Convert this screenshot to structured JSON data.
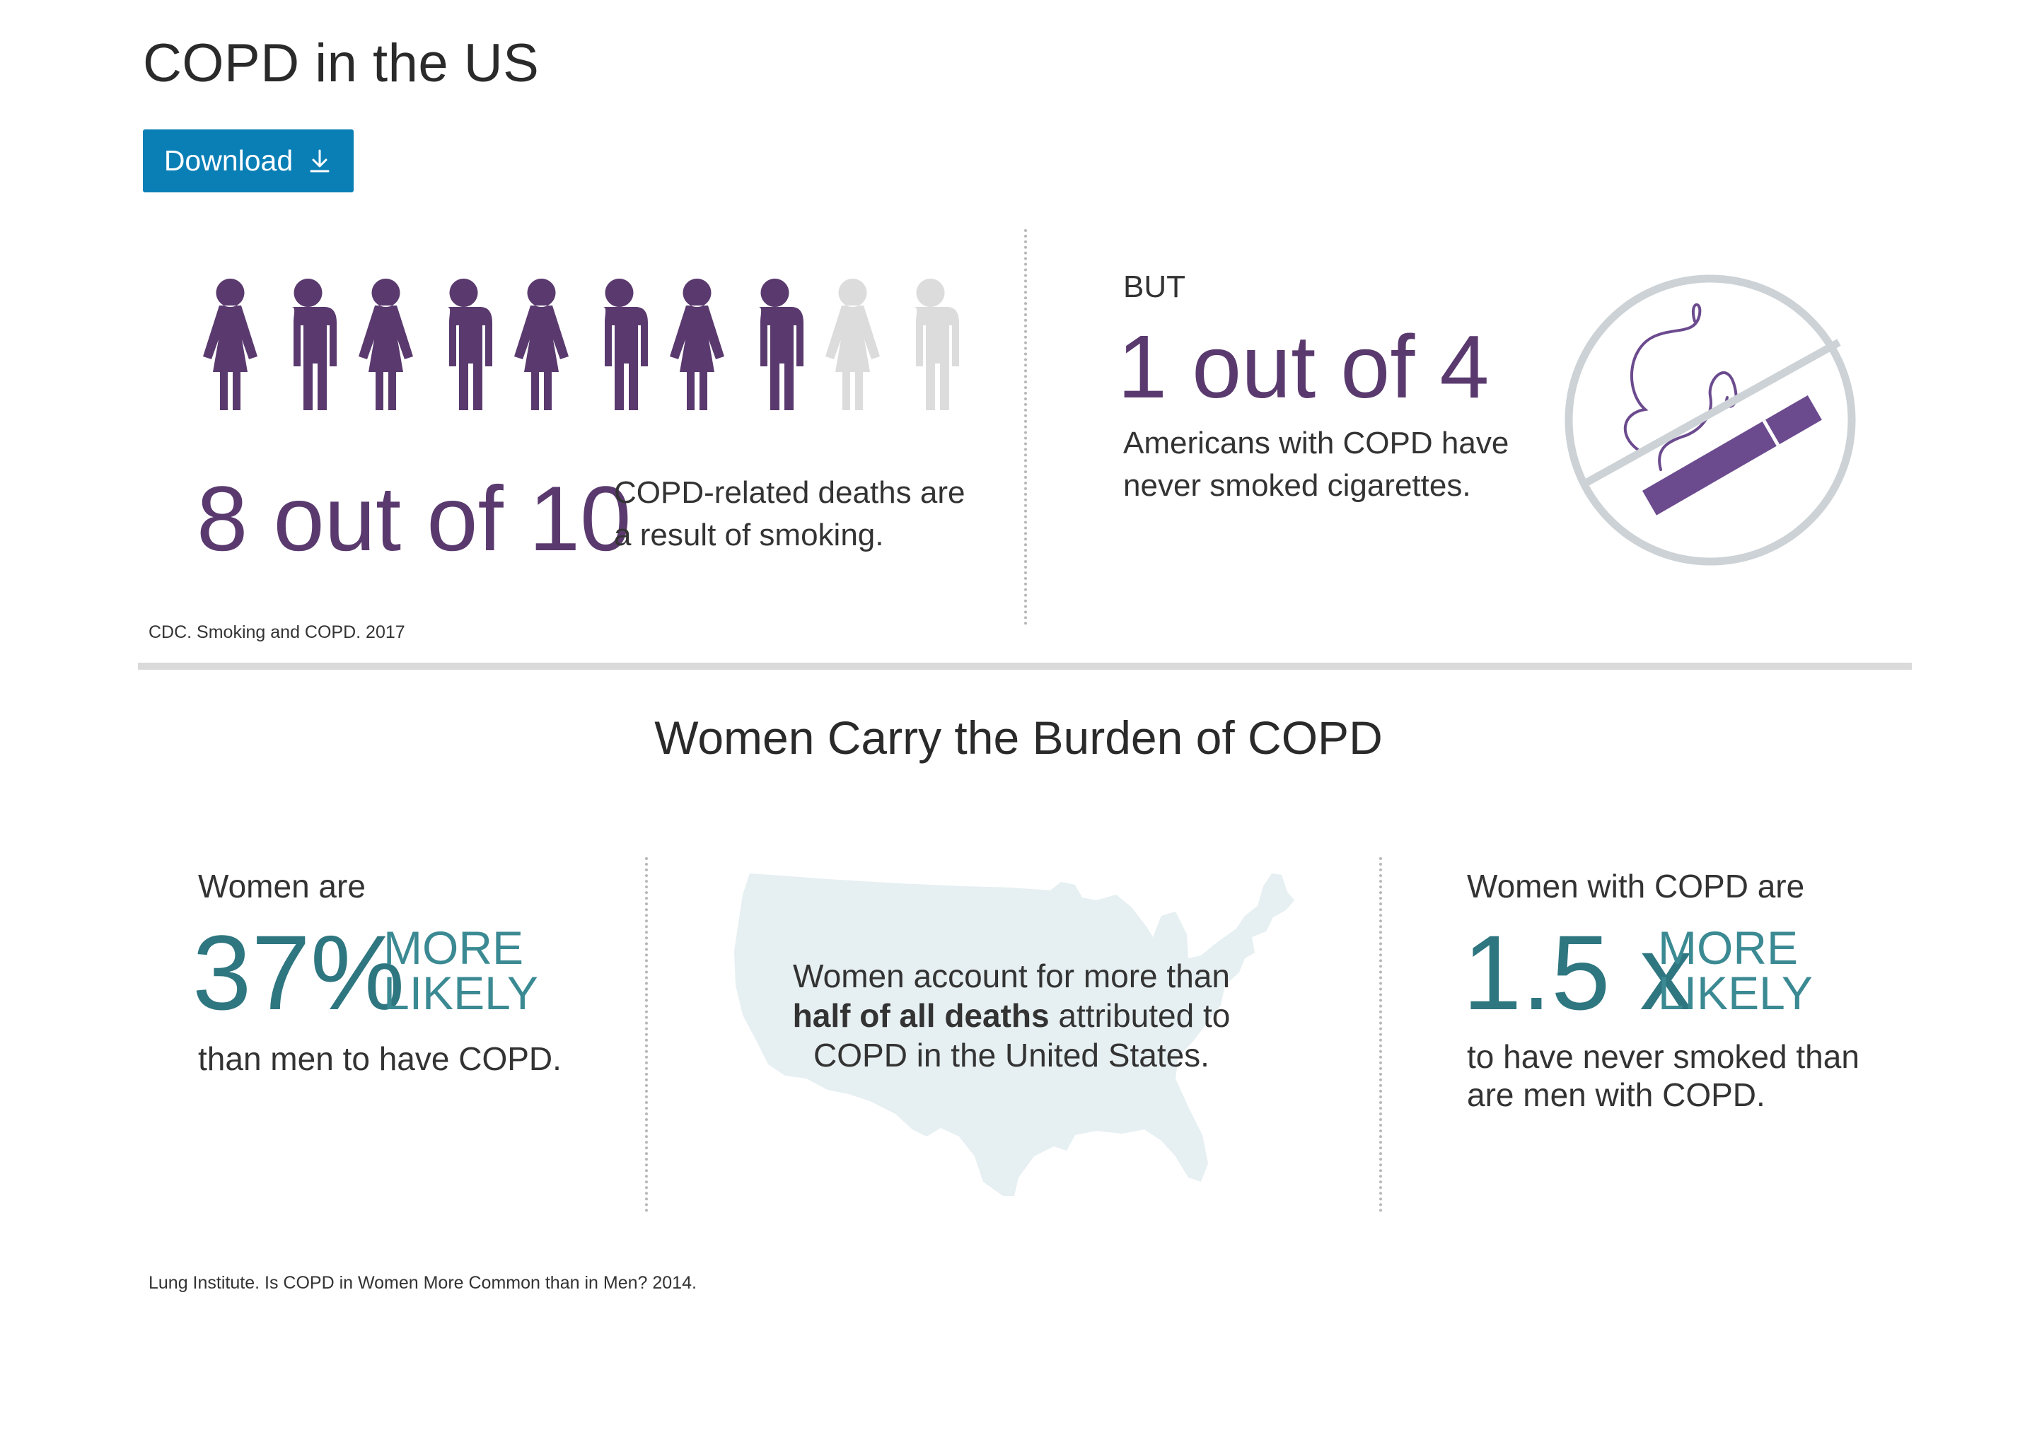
{
  "page_title": "COPD in the US",
  "download_label": "Download",
  "icons": {
    "download": "download-arrow-icon",
    "people": "person-figure-icon",
    "no_smoking": "no-smoking-icon",
    "map": "us-map-icon"
  },
  "colors": {
    "accent_blue": "#0a7fb6",
    "purple": "#5a3a6e",
    "purple_cigarette": "#6b4a8e",
    "gray_figure": "#dcdcdc",
    "teal": "#2e7680",
    "map_fill": "#e6eff1",
    "divider": "#dadada"
  },
  "smoking_section": {
    "people_highlighted": 8,
    "people_total": 10,
    "stat": "8 out of 10",
    "stat_desc_line1": "COPD-related deaths are",
    "stat_desc_line2": "a result of smoking.",
    "citation": "CDC. Smoking and COPD. 2017"
  },
  "never_smoked_section": {
    "lead": "BUT",
    "stat": "1 out of 4",
    "desc_line1": "Americans with COPD have",
    "desc_line2": "never smoked cigarettes."
  },
  "women_section": {
    "heading": "Women Carry the Burden of COPD",
    "left": {
      "lead": "Women are",
      "stat": "37%",
      "more": "MORE",
      "likely": "LIKELY",
      "tail": "than men to have COPD."
    },
    "center": {
      "line1": "Women account for more than",
      "line2_bold": "half of all deaths",
      "line2_rest": " attributed to",
      "line3": "COPD in the United States."
    },
    "right": {
      "lead": "Women with COPD are",
      "stat": "1.5 x",
      "more": "MORE",
      "likely": "LIKELY",
      "tail_line1": "to have never smoked than",
      "tail_line2": "are men with COPD."
    },
    "citation": "Lung Institute. Is COPD in Women More Common than in Men? 2014."
  }
}
